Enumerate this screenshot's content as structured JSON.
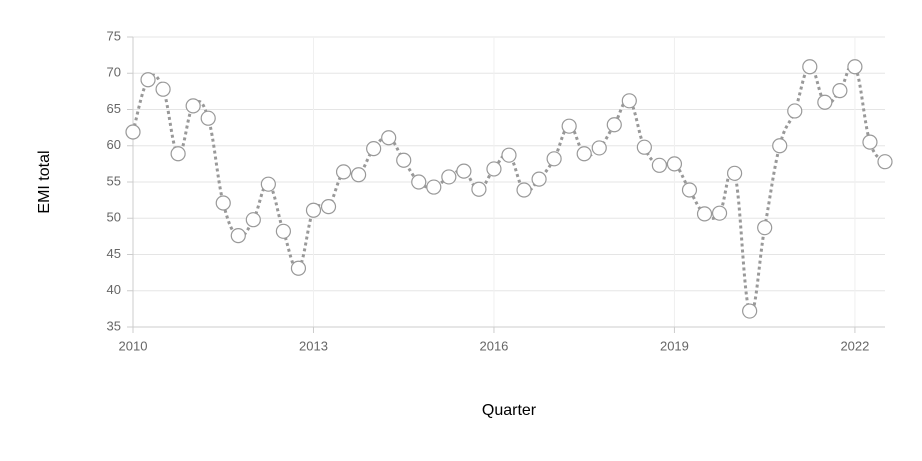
{
  "chart_data": {
    "type": "line",
    "x_label": "Quarter",
    "y_label": "EMI total",
    "x": [
      2010,
      2010.25,
      2010.5,
      2010.75,
      2011,
      2011.25,
      2011.5,
      2011.75,
      2012,
      2012.25,
      2012.5,
      2012.75,
      2013,
      2013.25,
      2013.5,
      2013.75,
      2014,
      2014.25,
      2014.5,
      2014.75,
      2015,
      2015.25,
      2015.5,
      2015.75,
      2016,
      2016.25,
      2016.5,
      2016.75,
      2017,
      2017.25,
      2017.5,
      2017.75,
      2018,
      2018.25,
      2018.5,
      2018.75,
      2019,
      2019.25,
      2019.5,
      2019.75,
      2020,
      2020.25,
      2020.5,
      2020.75,
      2021,
      2021.25,
      2021.5,
      2021.75,
      2022,
      2022.25,
      2022.5
    ],
    "series": [
      {
        "color": "#999999",
        "values": [
          61.9,
          69.1,
          67.8,
          58.9,
          65.5,
          63.8,
          52.1,
          47.6,
          49.8,
          54.7,
          48.2,
          43.1,
          51.1,
          51.6,
          56.4,
          56.0,
          59.6,
          61.1,
          58.0,
          55.0,
          54.3,
          55.7,
          56.5,
          54.0,
          56.8,
          58.7,
          53.9,
          55.4,
          58.2,
          62.7,
          58.9,
          59.7,
          62.9,
          66.2,
          59.8,
          57.3,
          57.5,
          53.9,
          50.6,
          50.7,
          56.2,
          37.2,
          48.7,
          60.0,
          64.8,
          70.9,
          66.0,
          67.6,
          70.9,
          60.5,
          57.8
        ]
      }
    ],
    "xlim": [
      2010,
      2022.5
    ],
    "xticks": [
      2010,
      2013,
      2016,
      2019,
      2022
    ],
    "ylim": [
      35,
      75
    ],
    "yticks": [
      35,
      40,
      45,
      50,
      55,
      60,
      65,
      70,
      75
    ],
    "grid": true
  }
}
